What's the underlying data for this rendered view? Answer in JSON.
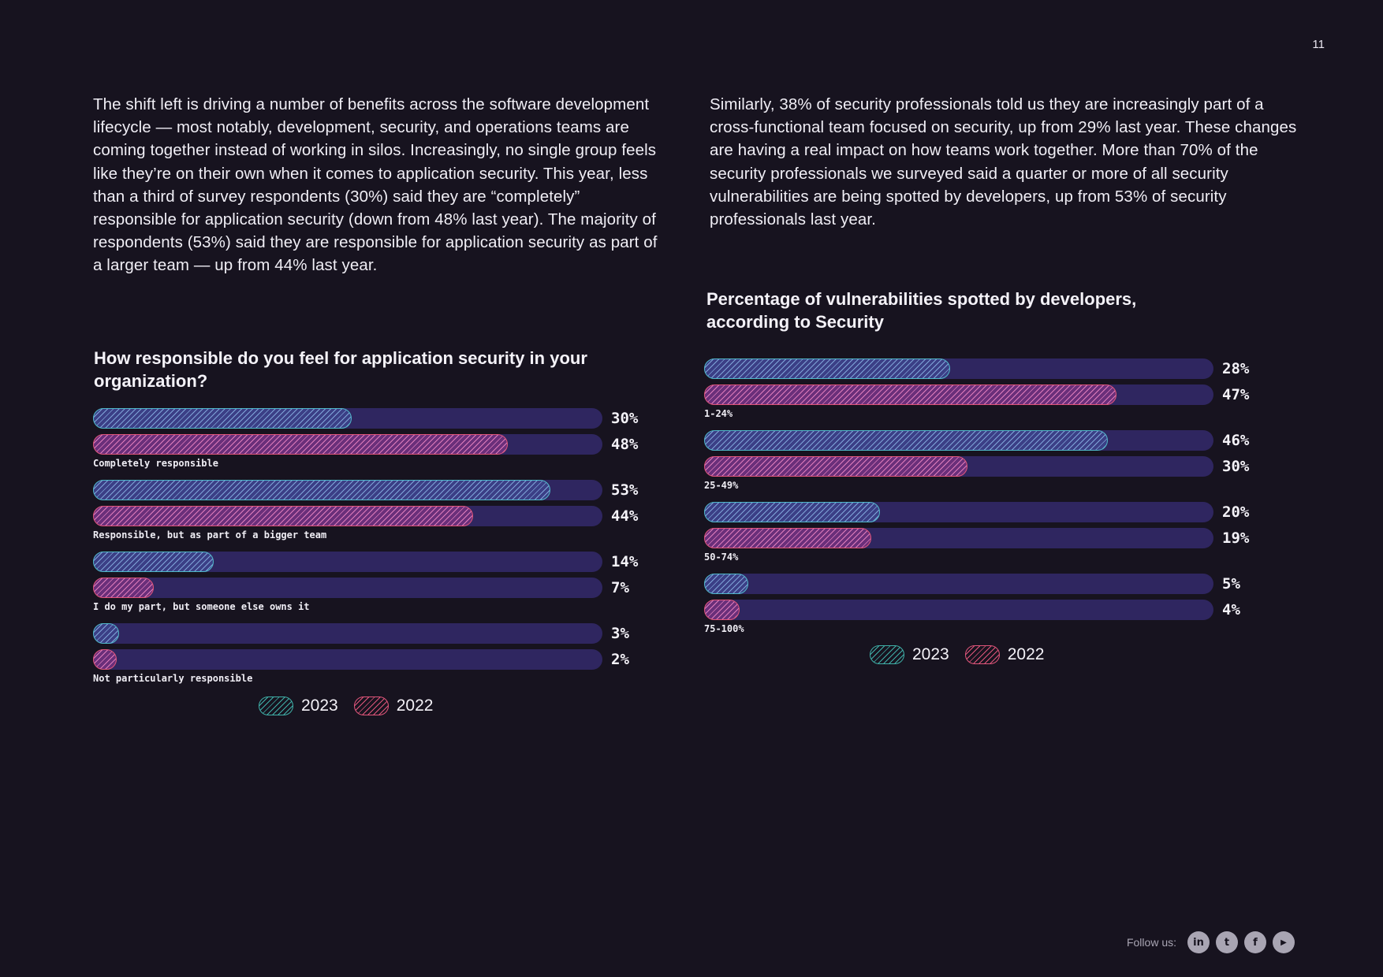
{
  "page_number": "11",
  "left_paragraph": "The shift left is driving a number of benefits across the software development lifecycle — most notably, development, security, and operations teams are coming together instead of working in silos. Increasingly, no single group feels like they’re on their own when it comes to application security. This year, less than a third of survey respondents (30%) said they are “completely” responsible for application security (down from 48% last year). The majority of respondents (53%) said they are responsible for application security as part of a larger team — up from 44% last year.",
  "right_paragraph": "Similarly, 38% of security professionals told us they are increasingly part of a cross-functional team focused on security, up from 29% last year. These changes are having a real impact on how teams work together. More than 70% of the security professionals we surveyed said a quarter or more of all security vulnerabilities are being spotted by developers, up from 53% of security professionals last year.",
  "legend": {
    "y2023": "2023",
    "y2022": "2022"
  },
  "footer": {
    "follow_label": "Follow us:",
    "icons": [
      "linkedin-icon",
      "twitter-icon",
      "facebook-icon",
      "youtube-icon"
    ],
    "glyphs": [
      "in",
      "t",
      "f",
      "▶"
    ]
  },
  "colors": {
    "background": "#17131f",
    "track": "#2f2660",
    "series_2023": "#4fb8c9",
    "series_2022": "#e0557a"
  },
  "chart_data": [
    {
      "type": "bar",
      "orientation": "horizontal",
      "title": "How responsible do you feel for application security in your organization?",
      "categories": [
        "Completely responsible",
        "Responsible, but as part of a bigger team",
        "I do my part, but someone else owns it",
        "Not particularly responsible"
      ],
      "series": [
        {
          "name": "2023",
          "values": [
            30,
            53,
            14,
            3
          ],
          "labels": [
            "30%",
            "53%",
            "14%",
            "3%"
          ]
        },
        {
          "name": "2022",
          "values": [
            48,
            44,
            7,
            2
          ],
          "labels": [
            "48%",
            "44%",
            "7%",
            "2%"
          ]
        }
      ],
      "xlim": [
        0,
        59
      ],
      "legend": "bottom-center",
      "unit": "%"
    },
    {
      "type": "bar",
      "orientation": "horizontal",
      "title": "Percentage of vulnerabilities spotted by developers, according to Security",
      "categories": [
        "1-24%",
        "25-49%",
        "50-74%",
        "75-100%"
      ],
      "series": [
        {
          "name": "2023",
          "values": [
            28,
            46,
            20,
            5
          ],
          "labels": [
            "28%",
            "46%",
            "20%",
            "5%"
          ]
        },
        {
          "name": "2022",
          "values": [
            47,
            30,
            19,
            4
          ],
          "labels": [
            "47%",
            "30%",
            "19%",
            "4%"
          ]
        }
      ],
      "xlim": [
        0,
        58
      ],
      "legend": "bottom-center",
      "unit": "%"
    }
  ]
}
